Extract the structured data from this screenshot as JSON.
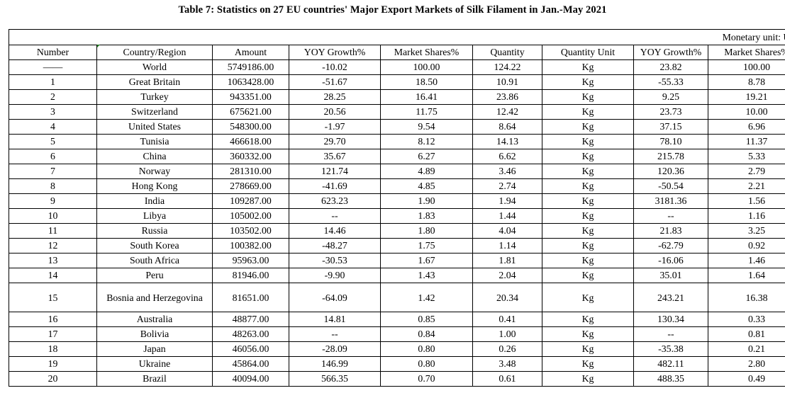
{
  "title": "Table 7: Statistics on 27 EU countries' Major Export Markets of Silk Filament in Jan.-May 2021",
  "unit_note": "Monetary unit: USD",
  "headers": [
    "Number",
    "Country/Region",
    "Amount",
    "YOY Growth%",
    "Market Shares%",
    "Quantity",
    "Quantity Unit",
    "YOY Growth%",
    "Market Shares%"
  ],
  "rows": [
    [
      "——",
      "World",
      "5749186.00",
      "-10.02",
      "100.00",
      "124.22",
      "Kg",
      "23.82",
      "100.00"
    ],
    [
      "1",
      "Great Britain",
      "1063428.00",
      "-51.67",
      "18.50",
      "10.91",
      "Kg",
      "-55.33",
      "8.78"
    ],
    [
      "2",
      "Turkey",
      "943351.00",
      "28.25",
      "16.41",
      "23.86",
      "Kg",
      "9.25",
      "19.21"
    ],
    [
      "3",
      "Switzerland",
      "675621.00",
      "20.56",
      "11.75",
      "12.42",
      "Kg",
      "23.73",
      "10.00"
    ],
    [
      "4",
      "United States",
      "548300.00",
      "-1.97",
      "9.54",
      "8.64",
      "Kg",
      "37.15",
      "6.96"
    ],
    [
      "5",
      "Tunisia",
      "466618.00",
      "29.70",
      "8.12",
      "14.13",
      "Kg",
      "78.10",
      "11.37"
    ],
    [
      "6",
      "China",
      "360332.00",
      "35.67",
      "6.27",
      "6.62",
      "Kg",
      "215.78",
      "5.33"
    ],
    [
      "7",
      "Norway",
      "281310.00",
      "121.74",
      "4.89",
      "3.46",
      "Kg",
      "120.36",
      "2.79"
    ],
    [
      "8",
      "Hong Kong",
      "278669.00",
      "-41.69",
      "4.85",
      "2.74",
      "Kg",
      "-50.54",
      "2.21"
    ],
    [
      "9",
      "India",
      "109287.00",
      "623.23",
      "1.90",
      "1.94",
      "Kg",
      "3181.36",
      "1.56"
    ],
    [
      "10",
      "Libya",
      "105002.00",
      "--",
      "1.83",
      "1.44",
      "Kg",
      "--",
      "1.16"
    ],
    [
      "11",
      "Russia",
      "103502.00",
      "14.46",
      "1.80",
      "4.04",
      "Kg",
      "21.83",
      "3.25"
    ],
    [
      "12",
      "South Korea",
      "100382.00",
      "-48.27",
      "1.75",
      "1.14",
      "Kg",
      "-62.79",
      "0.92"
    ],
    [
      "13",
      "South Africa",
      "95963.00",
      "-30.53",
      "1.67",
      "1.81",
      "Kg",
      "-16.06",
      "1.46"
    ],
    [
      "14",
      "Peru",
      "81946.00",
      "-9.90",
      "1.43",
      "2.04",
      "Kg",
      "35.01",
      "1.64"
    ],
    [
      "15",
      "Bosnia and Herzegovina",
      "81651.00",
      "-64.09",
      "1.42",
      "20.34",
      "Kg",
      "243.21",
      "16.38"
    ],
    [
      "16",
      "Australia",
      "48877.00",
      "14.81",
      "0.85",
      "0.41",
      "Kg",
      "130.34",
      "0.33"
    ],
    [
      "17",
      "Bolivia",
      "48263.00",
      "--",
      "0.84",
      "1.00",
      "Kg",
      "--",
      "0.81"
    ],
    [
      "18",
      "Japan",
      "46056.00",
      "-28.09",
      "0.80",
      "0.26",
      "Kg",
      "-35.38",
      "0.21"
    ],
    [
      "19",
      "Ukraine",
      "45864.00",
      "146.99",
      "0.80",
      "3.48",
      "Kg",
      "482.11",
      "2.80"
    ],
    [
      "20",
      "Brazil",
      "40094.00",
      "566.35",
      "0.70",
      "0.61",
      "Kg",
      "488.35",
      "0.49"
    ]
  ]
}
